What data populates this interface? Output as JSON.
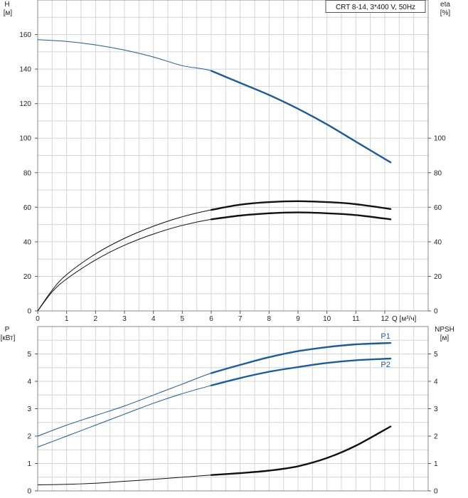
{
  "title": "CRT 8-14, 3*400 V, 50Hz",
  "chart_data": [
    {
      "type": "line",
      "panel": "top",
      "y_left_label": [
        "H",
        "[м]"
      ],
      "y_right_label": [
        "eta",
        "[%]"
      ],
      "x_label": "Q [м³/ч]",
      "xlim": [
        0,
        13.5
      ],
      "ylim": [
        0,
        180
      ],
      "x_ticks": [
        0,
        1,
        2,
        3,
        4,
        5,
        6,
        7,
        8,
        9,
        10,
        11,
        12
      ],
      "y_left_ticks": [
        0,
        20,
        40,
        60,
        80,
        100,
        120,
        140,
        160
      ],
      "y_right_ticks": [
        0,
        20,
        40,
        60,
        80,
        100
      ],
      "grid": true,
      "series": [
        {
          "key": "H",
          "color": "#1f5b95",
          "x": [
            0,
            1,
            2,
            3,
            4,
            5,
            6,
            7,
            8,
            9,
            10,
            11,
            12.2
          ],
          "y": [
            157,
            156,
            154,
            151,
            147,
            142,
            139,
            132,
            125,
            117,
            108,
            98,
            86
          ],
          "bold_from": 6
        },
        {
          "key": "eta_upper",
          "color": "#111111",
          "x": [
            0,
            0.5,
            1,
            2,
            3,
            4,
            5,
            6,
            7,
            8,
            9,
            10,
            11,
            12.2
          ],
          "y": [
            0,
            12,
            21,
            33,
            42,
            49,
            54.5,
            58.5,
            61.5,
            63,
            63.5,
            63,
            61.8,
            59
          ],
          "bold_from": 6
        },
        {
          "key": "eta_lower",
          "color": "#111111",
          "x": [
            0,
            0.5,
            1,
            2,
            3,
            4,
            5,
            6,
            7,
            8,
            9,
            10,
            11,
            12.2
          ],
          "y": [
            0,
            11,
            18.5,
            29.5,
            38,
            44.5,
            49.5,
            53,
            55.2,
            56.5,
            57,
            56.5,
            55.5,
            53
          ],
          "bold_from": 6
        }
      ]
    },
    {
      "type": "line",
      "panel": "bottom",
      "y_left_label": [
        "P",
        "[кВт]"
      ],
      "y_right_label": [
        "NPSH",
        "[м]"
      ],
      "xlim": [
        0,
        13.5
      ],
      "ylim": [
        0,
        6
      ],
      "y_left_ticks": [
        0,
        1,
        2,
        3,
        4,
        5
      ],
      "y_right_ticks": [
        0,
        1,
        2,
        3,
        4,
        5
      ],
      "grid": true,
      "series": [
        {
          "name": "P1",
          "key": "P1",
          "color": "#1f5b95",
          "x": [
            0,
            1,
            2,
            3,
            4,
            5,
            6,
            7,
            8,
            9,
            10,
            11,
            12.2
          ],
          "y": [
            2.0,
            2.4,
            2.75,
            3.1,
            3.5,
            3.9,
            4.3,
            4.6,
            4.88,
            5.1,
            5.25,
            5.35,
            5.4
          ],
          "bold_from": 6
        },
        {
          "name": "P2",
          "key": "P2",
          "color": "#1f5b95",
          "x": [
            0,
            1,
            2,
            3,
            4,
            5,
            6,
            7,
            8,
            9,
            10,
            11,
            12.2
          ],
          "y": [
            1.6,
            2.0,
            2.4,
            2.8,
            3.2,
            3.55,
            3.85,
            4.12,
            4.35,
            4.52,
            4.67,
            4.77,
            4.83
          ],
          "bold_from": 6
        },
        {
          "key": "NPSH",
          "color": "#111111",
          "x": [
            0,
            1,
            2,
            3,
            4,
            5,
            6,
            7,
            8,
            9,
            10,
            11,
            12.2
          ],
          "y": [
            0.22,
            0.24,
            0.28,
            0.35,
            0.42,
            0.5,
            0.58,
            0.65,
            0.74,
            0.9,
            1.2,
            1.65,
            2.35
          ],
          "bold_from": 6
        }
      ]
    }
  ]
}
